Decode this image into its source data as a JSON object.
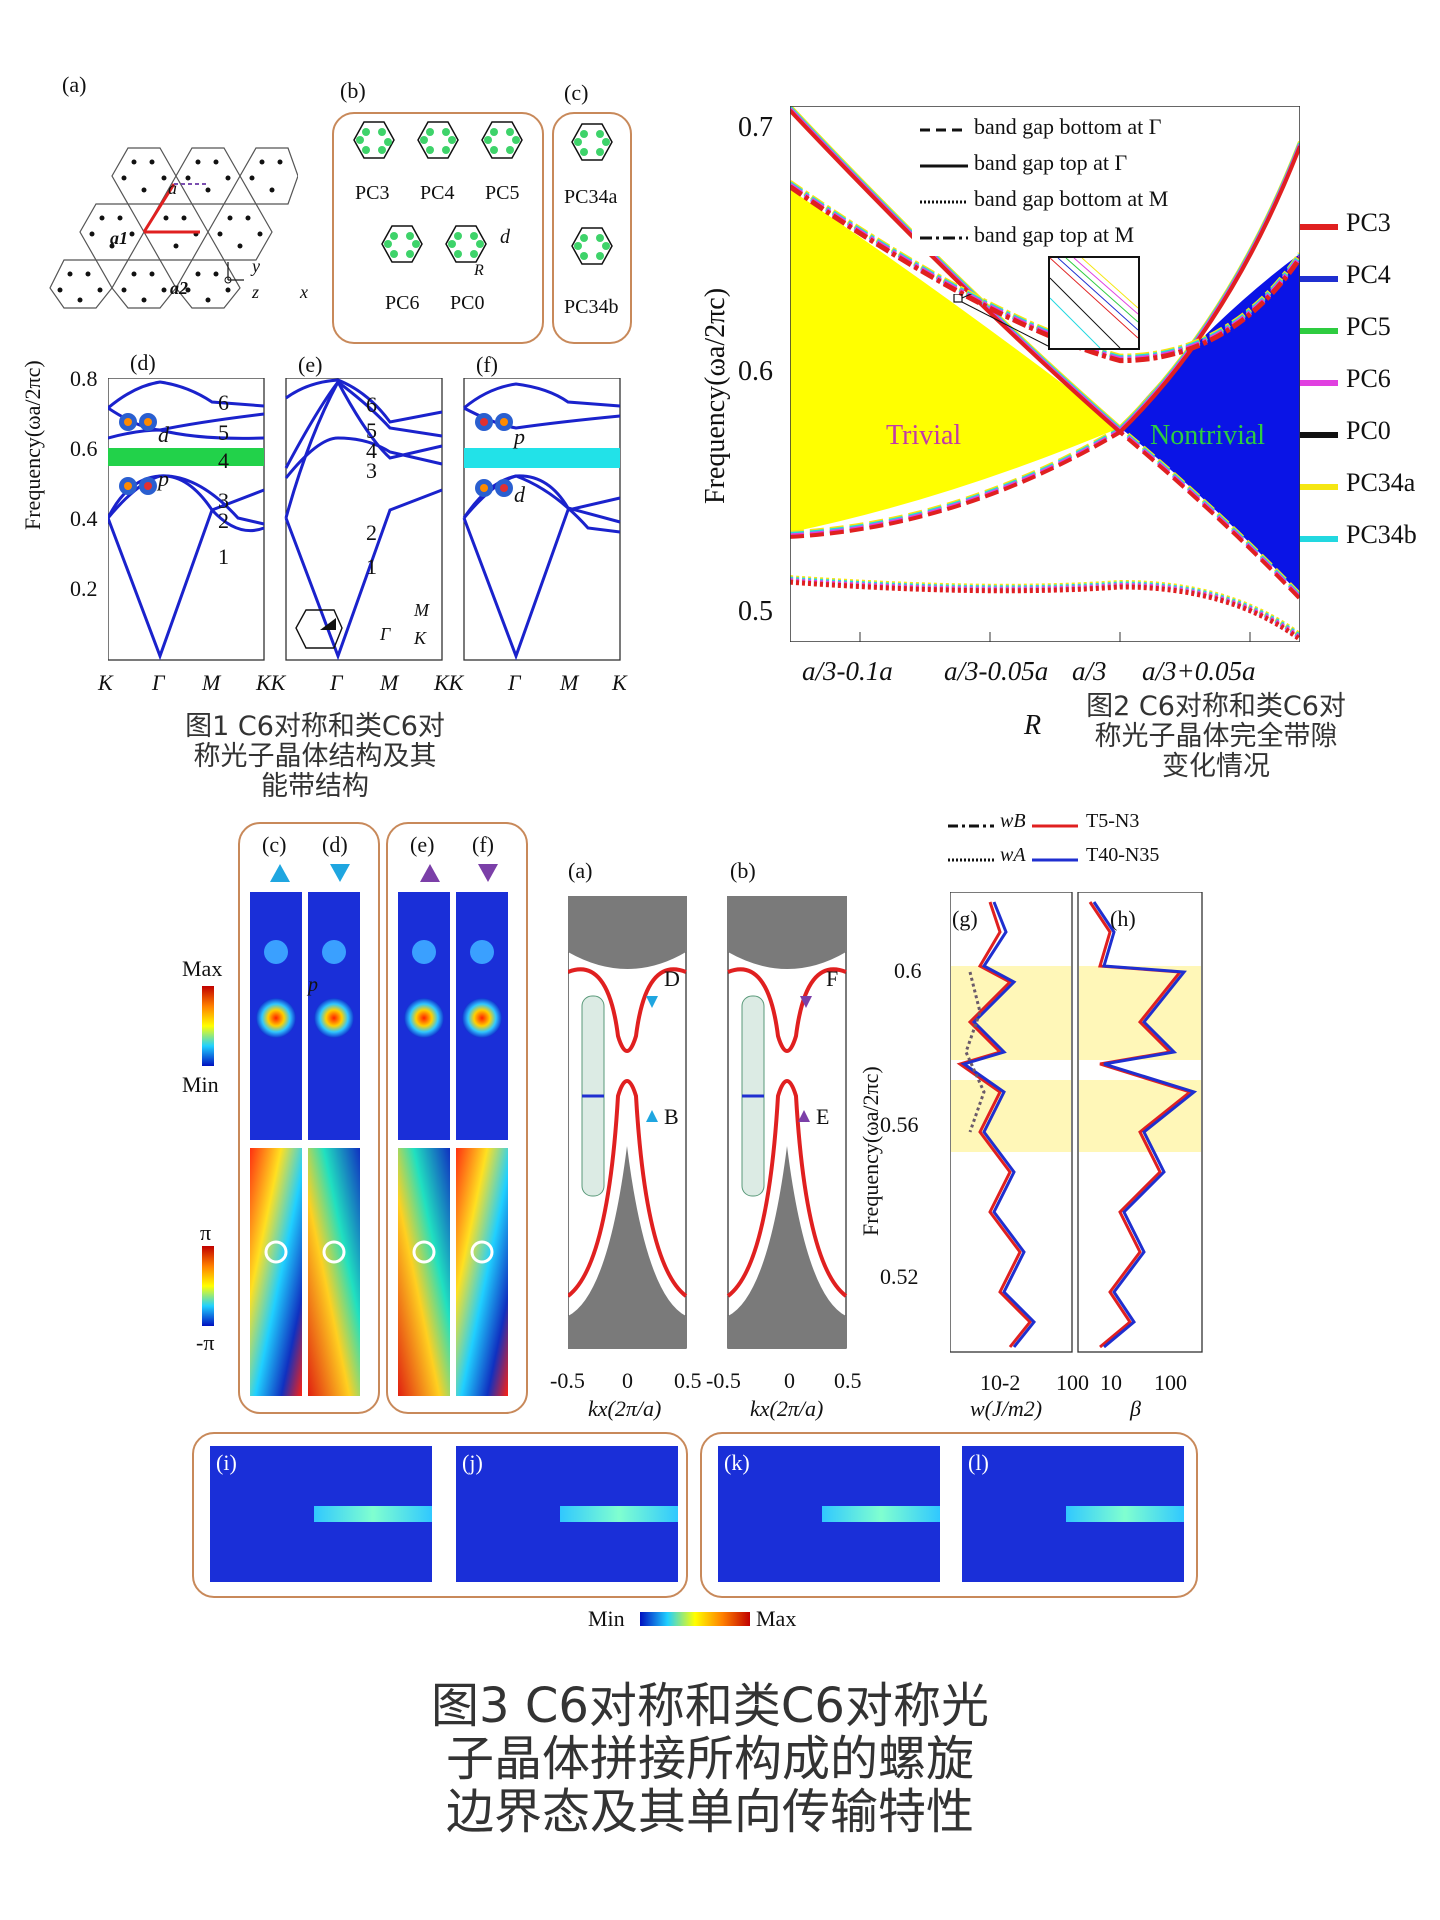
{
  "figure1": {
    "panel_labels": {
      "a": "(a)",
      "b": "(b)",
      "c": "(c)",
      "d": "(d)",
      "e": "(e)",
      "f": "(f)"
    },
    "lattice": {
      "a": "a",
      "a1": "a1",
      "a2": "a2",
      "x": "x",
      "y": "y",
      "z": "z"
    },
    "pc_labels_b": [
      "PC3",
      "PC4",
      "PC5",
      "PC6",
      "PC0"
    ],
    "pc_labels_c": [
      "PC34a",
      "PC34b"
    ],
    "param_labels": {
      "d": "d",
      "R": "R"
    },
    "band_ylabel": "Frequency(ωa/2πc)",
    "band_yticks": [
      "0.8",
      "0.6",
      "0.4",
      "0.2"
    ],
    "band_xticks": [
      "K",
      "Γ",
      "M",
      "KK",
      "Γ",
      "M",
      "KK",
      "Γ",
      "M",
      "K"
    ],
    "band_numbers_d": [
      "6",
      "5",
      "4",
      "3",
      "2",
      "1"
    ],
    "band_numbers_e": [
      "6",
      "5",
      "4",
      "3",
      "2",
      "1"
    ],
    "mode_labels_d": [
      "d",
      "p"
    ],
    "mode_labels_f": [
      "p",
      "d"
    ],
    "bz_labels": [
      "M",
      "Γ",
      "K"
    ],
    "gap_color_d": "#22d24a",
    "gap_color_f": "#22e2e8",
    "caption": [
      "图1 C6对称和类C6对",
      "称光子晶体结构及其",
      "能带结构"
    ]
  },
  "figure2": {
    "chart_data": {
      "type": "line",
      "xlabel": "R",
      "ylabel": "Frequency(ωa/2πc)",
      "xticks": [
        "a/3-0.1a",
        "a/3-0.05a",
        "a/3",
        "a/3+0.05a"
      ],
      "yticks": [
        "0.7",
        "0.6",
        "0.5"
      ],
      "ylim": [
        0.485,
        0.71
      ],
      "legend_lines": [
        "band gap bottom at Γ",
        "band gap top at Γ",
        "band gap bottom at M",
        "band gap top at M"
      ],
      "legend_series": [
        {
          "name": "PC3",
          "color": "#e02020"
        },
        {
          "name": "PC4",
          "color": "#1f2fd0"
        },
        {
          "name": "PC5",
          "color": "#2ecc40"
        },
        {
          "name": "PC6",
          "color": "#e040e0"
        },
        {
          "name": "PC0",
          "color": "#111111"
        },
        {
          "name": "PC34a",
          "color": "#f5e612"
        },
        {
          "name": "PC34b",
          "color": "#22d8e0"
        }
      ],
      "regions": [
        {
          "label": "Trivial",
          "color": "#ffff00"
        },
        {
          "label": "Nontrivial",
          "color": "#0a14e6"
        }
      ],
      "x": [
        0,
        0.05,
        0.1,
        0.15
      ],
      "series": [
        {
          "name": "band gap bottom at Γ",
          "values": [
            0.53,
            0.538,
            0.575,
            0.505
          ]
        },
        {
          "name": "band gap top at Γ",
          "values": [
            0.71,
            0.648,
            0.575,
            0.695
          ]
        },
        {
          "name": "band gap bottom at M",
          "values": [
            0.512,
            0.509,
            0.51,
            0.488
          ]
        },
        {
          "name": "band gap top at M",
          "values": [
            0.678,
            0.613,
            0.606,
            0.648
          ]
        }
      ]
    },
    "caption": [
      "图2 C6对称和类C6对",
      "称光子晶体完全带隙",
      "变化情况"
    ]
  },
  "figure3": {
    "panel_labels": {
      "c": "(c)",
      "d": "(d)",
      "e": "(e)",
      "f": "(f)",
      "a": "(a)",
      "b": "(b)",
      "g": "(g)",
      "h": "(h)",
      "i": "(i)",
      "j": "(j)",
      "k": "(k)",
      "l": "(l)"
    },
    "colorbar_amp": {
      "max": "Max",
      "min": "Min"
    },
    "colorbar_phase": {
      "max": "π",
      "min": "-π"
    },
    "field_p": "p",
    "edge_mode_labels_a": [
      "D",
      "B"
    ],
    "edge_mode_labels_b": [
      "F",
      "E"
    ],
    "kx_ticks": [
      "-0.5",
      "0",
      "0.5",
      "-0.5",
      "0",
      "0.5"
    ],
    "kx_label": "kx(2π/a)",
    "legend_top": [
      {
        "style": "dash-dot",
        "label": "wB"
      },
      {
        "style": "solid",
        "color": "#e02020",
        "label": "T5-N3"
      },
      {
        "style": "dotted",
        "label": "wA"
      },
      {
        "style": "solid",
        "color": "#1f2fd0",
        "label": "T40-N35"
      }
    ],
    "gh_ylabel": "Frequency(ωa/2πc)",
    "gh_yticks": [
      "0.6",
      "0.56",
      "0.52"
    ],
    "g_xticks": [
      "10-2",
      "100"
    ],
    "g_xlabel": "w(J/m2)",
    "h_xticks": [
      "10",
      "100"
    ],
    "h_xlabel": "β",
    "bottom_colorbar": {
      "min": "Min",
      "max": "Max"
    },
    "caption": [
      "图3 C6对称和类C6对称光",
      "子晶体拼接所构成的螺旋",
      "边界态及其单向传输特性"
    ]
  }
}
